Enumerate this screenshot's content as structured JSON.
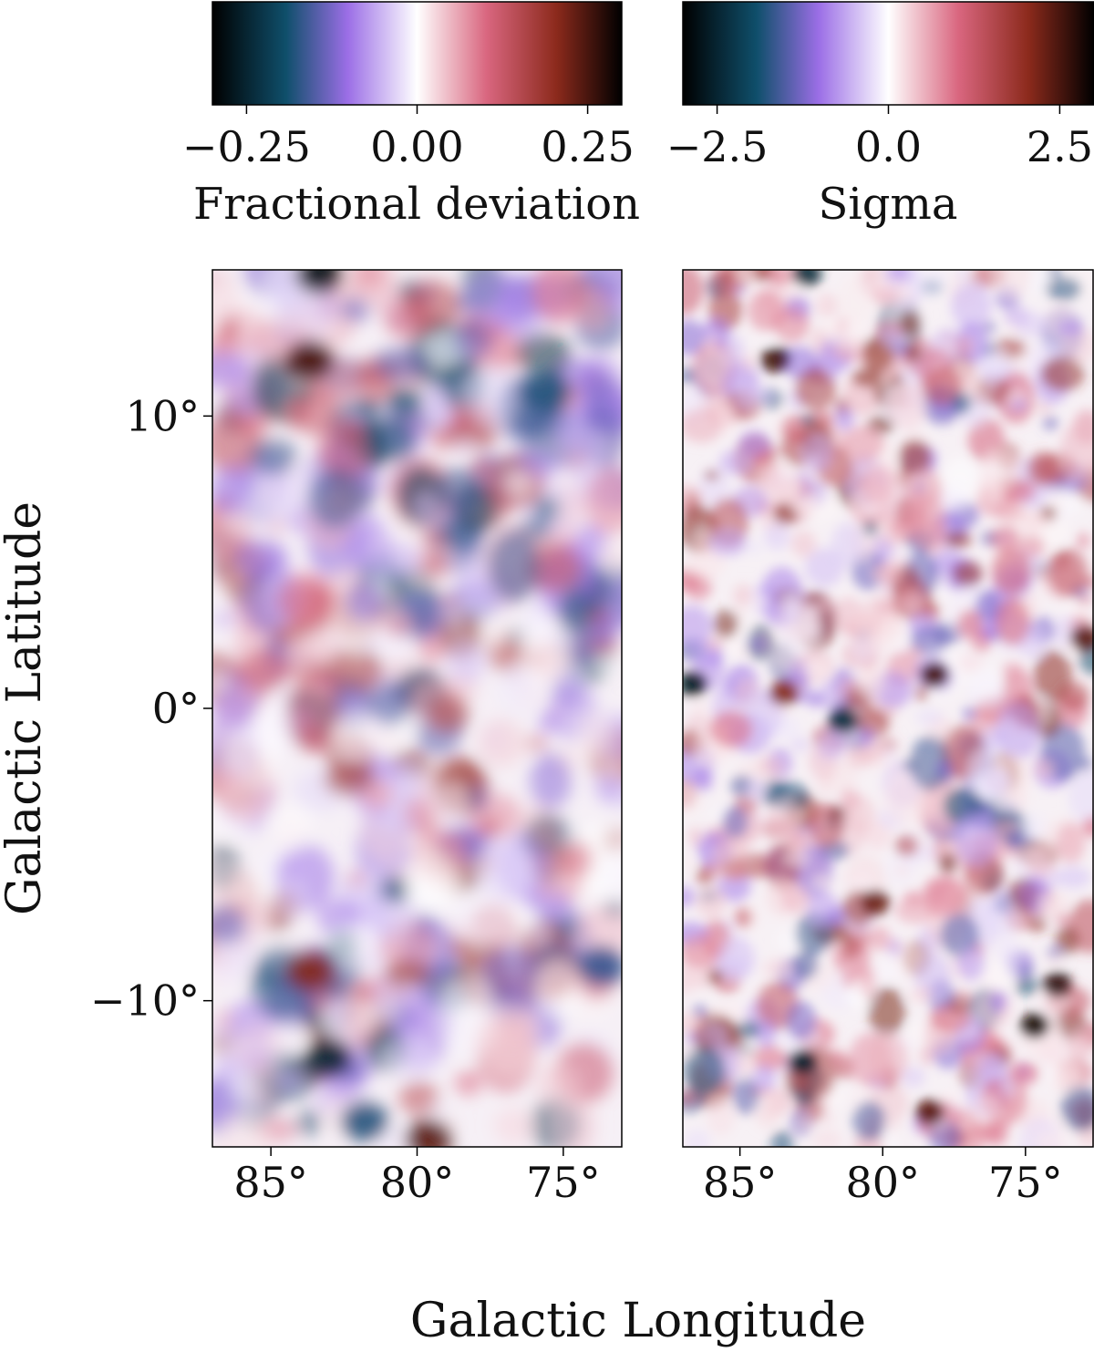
{
  "chart_data": [
    {
      "type": "colorbar",
      "label": "Fractional deviation",
      "range": [
        -0.3,
        0.3
      ],
      "ticks": [
        -0.25,
        0.0,
        0.25
      ],
      "tick_labels": [
        "−0.25",
        "0.00",
        "0.25"
      ],
      "colormap": "diverging: black → dark blue → purple → white → pink → dark red → black",
      "colormap_stops": [
        "#000000",
        "#0f4f6b",
        "#9b6ee6",
        "#ffffff",
        "#d9667f",
        "#8c2a1c",
        "#000000"
      ]
    },
    {
      "type": "colorbar",
      "label": "Sigma",
      "range": [
        -3.0,
        3.0
      ],
      "ticks": [
        -2.5,
        0.0,
        2.5
      ],
      "tick_labels": [
        "−2.5",
        "0.0",
        "2.5"
      ],
      "colormap": "diverging: black → dark blue → purple → white → pink → dark red → black",
      "colormap_stops": [
        "#000000",
        "#0f4f6b",
        "#9b6ee6",
        "#ffffff",
        "#d9667f",
        "#8c2a1c",
        "#000000"
      ]
    },
    {
      "type": "heatmap",
      "panel": "fractional deviation map",
      "xlim": [
        87,
        73
      ],
      "ylim": [
        -15,
        15
      ],
      "xticks": [
        85,
        80,
        75
      ],
      "xtick_labels": [
        "85°",
        "80°",
        "75°"
      ],
      "yticks": [
        10,
        0,
        -10
      ],
      "ytick_labels": [
        "10°",
        "0°",
        "−10°"
      ],
      "value_range": [
        -0.3,
        0.3
      ]
    },
    {
      "type": "heatmap",
      "panel": "sigma map",
      "xlim": [
        87,
        72.6
      ],
      "ylim": [
        -15,
        15
      ],
      "xticks": [
        85,
        80,
        75
      ],
      "xtick_labels": [
        "85°",
        "80°",
        "75°"
      ],
      "yticks": [],
      "value_range": [
        -3.0,
        3.0
      ]
    }
  ],
  "axes": {
    "xlabel": "Galactic Longitude",
    "ylabel": "Galactic Latitude"
  }
}
